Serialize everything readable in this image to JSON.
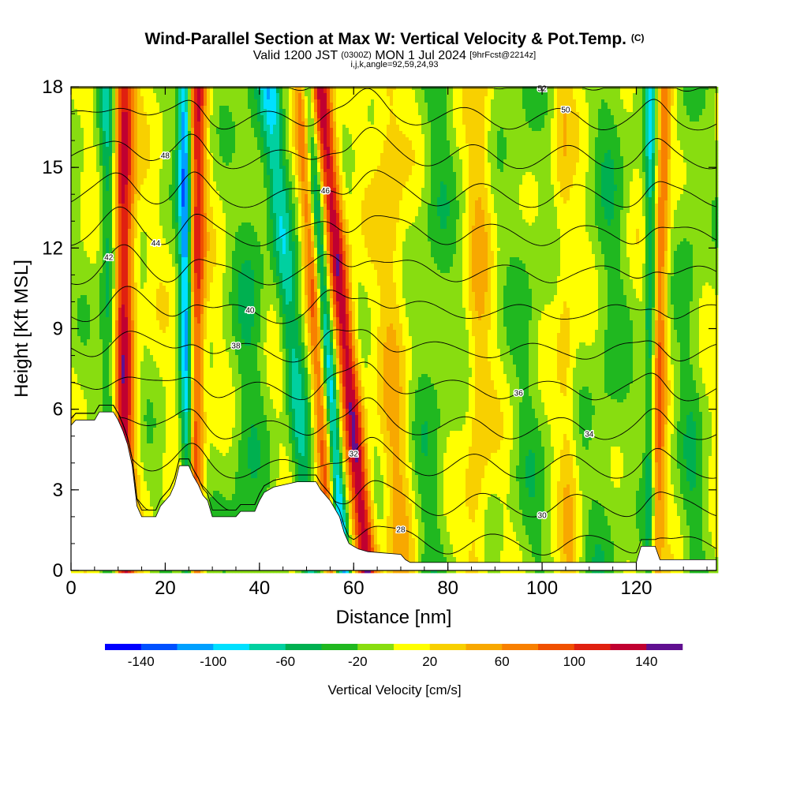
{
  "header": {
    "title_main": "Wind-Parallel Section at Max W: Vertical Velocity & Pot.Temp.",
    "title_mark": "(C)",
    "valid_prefix": "Valid 1200 JST",
    "valid_utc": "(0300Z)",
    "valid_date": "MON 1 Jul 2024",
    "forecast": "[9hrFcst@2214z]",
    "indices": "i,j,k,angle=92,59,24,93"
  },
  "colors": {
    "terrain": "#ffffff",
    "contour_line": "#000000",
    "background_field": "#ffff00"
  },
  "chart_data": {
    "type": "heatmap",
    "xlabel": "Distance [nm]",
    "ylabel": "Height [Kft MSL]",
    "xlim": [
      0,
      137
    ],
    "ylim": [
      0,
      18
    ],
    "x_ticks": [
      "0",
      "20",
      "40",
      "60",
      "80",
      "100",
      "120"
    ],
    "y_ticks": [
      "0",
      "3",
      "6",
      "9",
      "12",
      "15",
      "18"
    ],
    "field": "Vertical Velocity",
    "updrafts": [
      {
        "x_top": 11,
        "x_bottom": 11,
        "width": 2.4,
        "max": 140
      },
      {
        "x_top": 27,
        "x_bottom": 26,
        "width": 1.8,
        "max": 110
      },
      {
        "x_top": 49,
        "x_bottom": 55,
        "width": 1.8,
        "max": 90
      },
      {
        "x_top": 53,
        "x_bottom": 63,
        "width": 2.2,
        "max": 140
      },
      {
        "x_top": 126,
        "x_bottom": 124,
        "width": 1.6,
        "max": 80
      },
      {
        "x_top": 67,
        "x_bottom": 70,
        "width": 3.0,
        "max": 40
      },
      {
        "x_top": 87,
        "x_bottom": 86,
        "width": 2.5,
        "max": 35
      },
      {
        "x_top": 104,
        "x_bottom": 106,
        "width": 2.0,
        "max": 30
      }
    ],
    "downdrafts": [
      {
        "x_top": 8,
        "x_bottom": 9,
        "width": 2.0,
        "min": -80
      },
      {
        "x_top": 24,
        "x_bottom": 25,
        "width": 1.4,
        "min": -120
      },
      {
        "x_top": 42,
        "x_bottom": 51,
        "width": 2.2,
        "min": -60
      },
      {
        "x_top": 50,
        "x_bottom": 58,
        "width": 1.6,
        "min": -110
      },
      {
        "x_top": 123,
        "x_bottom": 123,
        "width": 1.2,
        "min": -70
      },
      {
        "x_top": 40,
        "x_bottom": 36,
        "width": 4.0,
        "min": -30
      },
      {
        "x_top": 78,
        "x_bottom": 76,
        "width": 4.0,
        "min": -25
      },
      {
        "x_top": 96,
        "x_bottom": 98,
        "width": 4.0,
        "min": -20
      },
      {
        "x_top": 115,
        "x_bottom": 113,
        "width": 4.0,
        "min": -25
      },
      {
        "x_top": 131,
        "x_bottom": 132,
        "width": 3.0,
        "min": -25
      }
    ],
    "terrain": [
      [
        0,
        5.4
      ],
      [
        1,
        5.6
      ],
      [
        5,
        5.6
      ],
      [
        6,
        5.9
      ],
      [
        9,
        5.9
      ],
      [
        10,
        5.6
      ],
      [
        11,
        5.2
      ],
      [
        12,
        4.7
      ],
      [
        13,
        3.9
      ],
      [
        14,
        2.4
      ],
      [
        15,
        2.0
      ],
      [
        18,
        2.0
      ],
      [
        19,
        2.4
      ],
      [
        20,
        2.6
      ],
      [
        21,
        2.8
      ],
      [
        22,
        3.2
      ],
      [
        23,
        3.9
      ],
      [
        25,
        3.9
      ],
      [
        26,
        3.5
      ],
      [
        27,
        3.2
      ],
      [
        28,
        2.8
      ],
      [
        29,
        2.6
      ],
      [
        30,
        2.0
      ],
      [
        35,
        2.0
      ],
      [
        36,
        2.2
      ],
      [
        39,
        2.2
      ],
      [
        40,
        2.6
      ],
      [
        41,
        2.9
      ],
      [
        43,
        3.1
      ],
      [
        48,
        3.3
      ],
      [
        52,
        3.3
      ],
      [
        53,
        3.0
      ],
      [
        55,
        2.6
      ],
      [
        57,
        2.0
      ],
      [
        58,
        1.4
      ],
      [
        59,
        1.0
      ],
      [
        60,
        0.9
      ],
      [
        61,
        0.8
      ],
      [
        63,
        0.7
      ],
      [
        70,
        0.6
      ],
      [
        71,
        0.4
      ],
      [
        72,
        0.3
      ],
      [
        120,
        0.3
      ],
      [
        121,
        0.9
      ],
      [
        124,
        0.9
      ],
      [
        125,
        0.4
      ],
      [
        137,
        0.4
      ]
    ],
    "isentropes": {
      "levels": [
        28,
        30,
        32,
        34,
        36,
        38,
        40,
        42,
        44,
        46,
        48,
        50,
        52
      ],
      "label_values": [
        "28",
        "30",
        "32",
        "34",
        "36",
        "38",
        "40",
        "42",
        "44",
        "46",
        "48",
        "50",
        "52"
      ]
    },
    "colorbar": {
      "label": "Vertical Velocity [cm/s]",
      "tick_labels": [
        "-140",
        "-100",
        "-60",
        "-20",
        "20",
        "60",
        "100",
        "140"
      ],
      "levels": [
        -160,
        -140,
        -120,
        -100,
        -80,
        -60,
        -40,
        -20,
        0,
        20,
        40,
        60,
        80,
        100,
        120,
        140,
        160
      ],
      "colors": [
        "#0000ff",
        "#0050ff",
        "#00a0ff",
        "#00e0ff",
        "#00d0a0",
        "#00b050",
        "#20b820",
        "#88dd10",
        "#ffff00",
        "#f8d000",
        "#f8a800",
        "#f88000",
        "#f05000",
        "#e02010",
        "#c00030",
        "#601090"
      ]
    }
  }
}
